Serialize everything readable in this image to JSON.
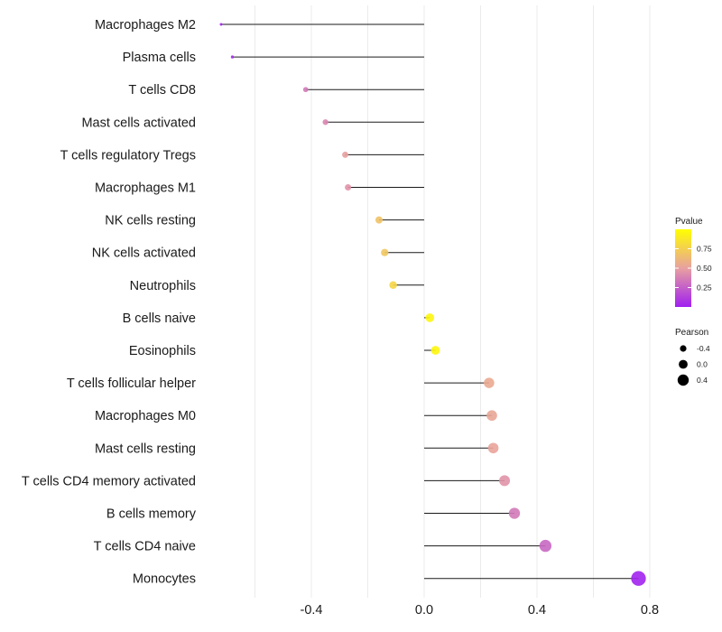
{
  "chart_data": {
    "type": "lollipop",
    "title": "",
    "xlabel": "",
    "ylabel": "",
    "xlim": [
      -0.6,
      0.88
    ],
    "xticks": [
      -0.4,
      0.0,
      0.4,
      0.8
    ],
    "xtick_labels": [
      "-0.4",
      "0.0",
      "0.4",
      "0.8"
    ],
    "categories": [
      "Macrophages M2",
      "Plasma cells",
      "T cells CD8",
      "Mast cells activated",
      "T cells regulatory  Tregs",
      "Macrophages M1",
      "NK cells resting",
      "NK cells activated",
      "Neutrophils",
      "B cells naive",
      "Eosinophils",
      "T cells follicular helper",
      "Macrophages M0",
      "Mast cells resting",
      "T cells CD4 memory activated",
      "B cells memory",
      "T cells CD4 naive",
      "Monocytes"
    ],
    "pearson": [
      -0.72,
      -0.68,
      -0.42,
      -0.35,
      -0.28,
      -0.27,
      -0.16,
      -0.14,
      -0.11,
      0.02,
      0.04,
      0.23,
      0.24,
      0.245,
      0.285,
      0.32,
      0.43,
      0.76
    ],
    "pvalue": [
      0.02,
      0.03,
      0.35,
      0.4,
      0.5,
      0.45,
      0.68,
      0.7,
      0.78,
      0.95,
      0.96,
      0.55,
      0.53,
      0.52,
      0.45,
      0.35,
      0.28,
      0.01
    ],
    "legend": {
      "color_title": "Pvalue",
      "color_ticks": [
        0.25,
        0.5,
        0.75
      ],
      "color_tick_labels": [
        "0.25",
        "0.50",
        "0.75"
      ],
      "color_low": "#a020f0",
      "color_mid": "#e8a0a0",
      "color_high": "#ffff00",
      "size_title": "Pearson",
      "size_values": [
        -0.4,
        0.0,
        0.4
      ],
      "size_labels": [
        "-0.4",
        "0.0",
        "0.4"
      ],
      "placement": "right"
    }
  }
}
